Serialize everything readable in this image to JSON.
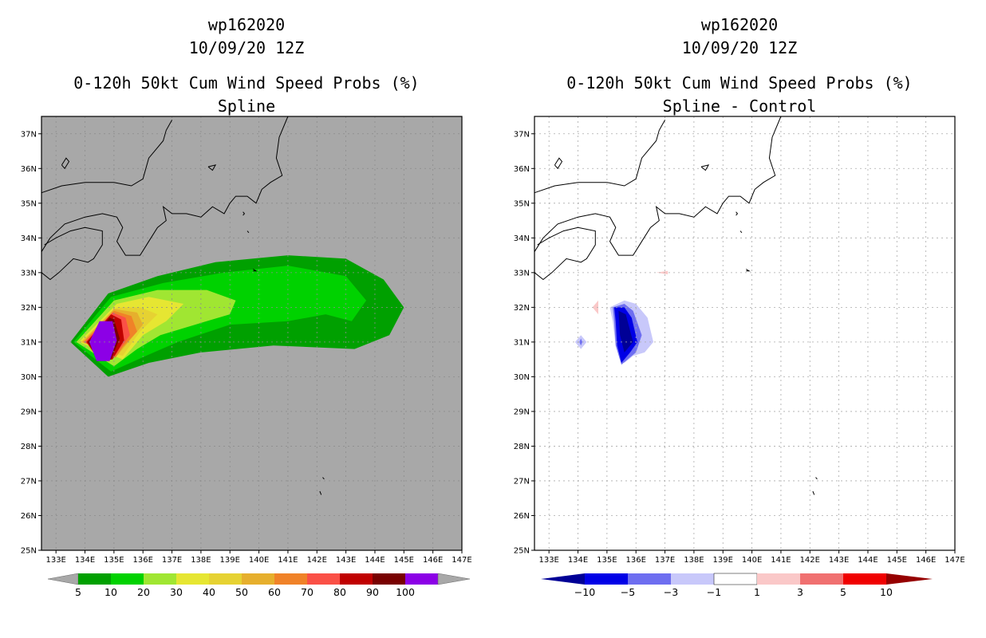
{
  "colors": {
    "land_bg": "#a8a8a8",
    "coast": "#000000",
    "grid": "#aaaaaa"
  },
  "left": {
    "title_line1": "wp162020",
    "title_line2": "10/09/20 12Z",
    "title_line3": "0-120h 50kt Cum Wind Speed Probs (%)",
    "title_line4": "Spline",
    "colorbar": {
      "labels": [
        "5",
        "10",
        "20",
        "30",
        "40",
        "50",
        "60",
        "70",
        "80",
        "90",
        "100"
      ],
      "colors": [
        "#00a000",
        "#00d200",
        "#a0e632",
        "#e6e632",
        "#e6d232",
        "#e6af2d",
        "#f08228",
        "#fa5046",
        "#c00000",
        "#780000",
        "#8c00e6"
      ]
    }
  },
  "right": {
    "title_line1": "wp162020",
    "title_line2": "10/09/20 12Z",
    "title_line3": "0-120h 50kt Cum Wind Speed Probs (%)",
    "title_line4": "Spline - Control",
    "colorbar": {
      "labels": [
        "−10",
        "−5",
        "−3",
        "−1",
        "1",
        "3",
        "5",
        "10"
      ],
      "colors": [
        "#000096",
        "#0000e6",
        "#6e6ef0",
        "#c8c8fa",
        "#ffffff",
        "#fac8c8",
        "#f07070",
        "#f00000",
        "#960000"
      ]
    }
  },
  "chart_data": [
    {
      "type": "heatmap",
      "title": "0-120h 50kt Cum Wind Speed Probs (%) Spline",
      "xlim": [
        132.5,
        147
      ],
      "ylim": [
        25,
        37.5
      ],
      "x_ticks": [
        "133E",
        "134E",
        "135E",
        "136E",
        "137E",
        "138E",
        "139E",
        "140E",
        "141E",
        "142E",
        "143E",
        "144E",
        "145E",
        "146E",
        "147E"
      ],
      "y_ticks": [
        "25N",
        "26N",
        "27N",
        "28N",
        "29N",
        "30N",
        "31N",
        "32N",
        "33N",
        "34N",
        "35N",
        "36N",
        "37N"
      ],
      "contour_levels": [
        5,
        10,
        20,
        30,
        40,
        50,
        60,
        70,
        80,
        90,
        100
      ],
      "maximum_region": {
        "lon": [
          133.5,
          135.5
        ],
        "lat": [
          30.4,
          31.6
        ],
        "value": "90-100"
      }
    },
    {
      "type": "heatmap",
      "title": "0-120h 50kt Cum Wind Speed Probs (%) Spline - Control",
      "xlim": [
        132.5,
        147
      ],
      "ylim": [
        25,
        37.5
      ],
      "x_ticks": [
        "133E",
        "134E",
        "135E",
        "136E",
        "137E",
        "138E",
        "139E",
        "140E",
        "141E",
        "142E",
        "143E",
        "144E",
        "145E",
        "146E",
        "147E"
      ],
      "y_ticks": [
        "25N",
        "26N",
        "27N",
        "28N",
        "29N",
        "30N",
        "31N",
        "32N",
        "33N",
        "34N",
        "35N",
        "36N",
        "37N"
      ],
      "contour_levels": [
        -10,
        -5,
        -3,
        -1,
        1,
        3,
        5,
        10
      ],
      "minimum_region": {
        "lon": [
          135.3,
          136.3
        ],
        "lat": [
          30.5,
          32
        ],
        "value": "-10 to -5"
      }
    }
  ]
}
